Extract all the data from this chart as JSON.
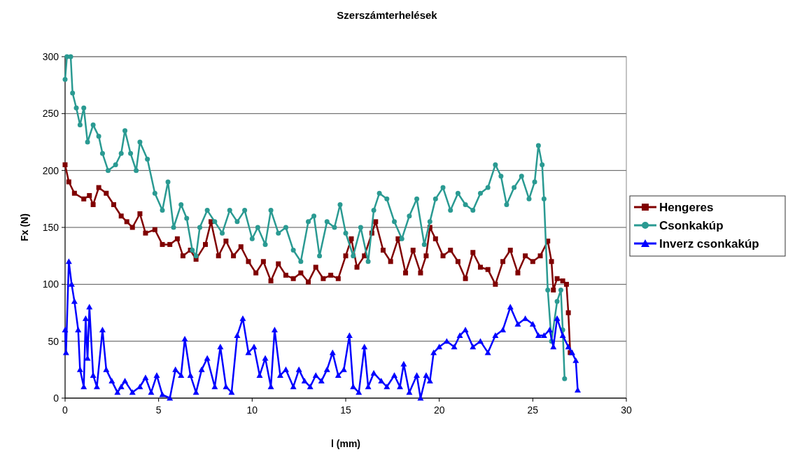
{
  "chart_data": {
    "type": "line",
    "title": "Szerszámterhelések",
    "xlabel": "l (mm)",
    "ylabel": "Fx (N)",
    "xlim": [
      0,
      30
    ],
    "xticks": [
      0,
      5,
      10,
      15,
      20,
      25,
      30
    ],
    "ylim": [
      0,
      300
    ],
    "yticks": [
      0,
      50,
      100,
      150,
      200,
      250,
      300
    ],
    "grid": "y",
    "legend": "right",
    "line_style": "solid",
    "series": [
      {
        "name": "Hengeres",
        "color": "#800000",
        "marker": "square",
        "x": [
          0,
          0.2,
          0.5,
          1,
          1.3,
          1.5,
          1.8,
          2.2,
          2.6,
          3,
          3.3,
          3.6,
          4,
          4.3,
          4.8,
          5.2,
          5.6,
          6,
          6.3,
          6.7,
          7,
          7.5,
          7.8,
          8.2,
          8.6,
          9,
          9.4,
          9.8,
          10.2,
          10.6,
          11,
          11.4,
          11.8,
          12.2,
          12.6,
          13,
          13.4,
          13.8,
          14.2,
          14.6,
          15,
          15.3,
          15.6,
          16,
          16.4,
          16.6,
          17,
          17.4,
          17.8,
          18.2,
          18.6,
          19,
          19.3,
          19.5,
          19.8,
          20.2,
          20.6,
          21,
          21.4,
          21.8,
          22.2,
          22.6,
          23,
          23.4,
          23.8,
          24.2,
          24.6,
          25,
          25.4,
          25.8,
          26,
          26.1,
          26.3,
          26.6,
          26.8,
          26.9,
          27
        ],
        "values": [
          205,
          190,
          180,
          175,
          178,
          170,
          185,
          180,
          170,
          160,
          155,
          150,
          162,
          145,
          148,
          135,
          135,
          140,
          125,
          130,
          122,
          135,
          155,
          125,
          138,
          125,
          133,
          120,
          110,
          120,
          103,
          118,
          108,
          105,
          110,
          102,
          115,
          105,
          108,
          105,
          125,
          140,
          115,
          125,
          145,
          155,
          130,
          120,
          140,
          110,
          130,
          110,
          125,
          150,
          140,
          125,
          130,
          120,
          105,
          128,
          115,
          113,
          100,
          120,
          130,
          110,
          125,
          120,
          125,
          138,
          120,
          95,
          105,
          103,
          100,
          75,
          40
        ]
      },
      {
        "name": "Csonkakúp",
        "color": "#2a9a92",
        "marker": "circle",
        "x": [
          0,
          0.1,
          0.3,
          0.4,
          0.6,
          0.8,
          1,
          1.2,
          1.5,
          1.8,
          2,
          2.3,
          2.7,
          3,
          3.2,
          3.5,
          3.8,
          4,
          4.4,
          4.8,
          5.2,
          5.5,
          5.8,
          6.2,
          6.5,
          6.8,
          7,
          7.2,
          7.6,
          8,
          8.4,
          8.8,
          9.2,
          9.6,
          10,
          10.3,
          10.7,
          11,
          11.4,
          11.8,
          12.2,
          12.6,
          13,
          13.3,
          13.6,
          14,
          14.4,
          14.7,
          15,
          15.4,
          15.8,
          16.2,
          16.5,
          16.8,
          17.2,
          17.6,
          18,
          18.4,
          18.8,
          19.2,
          19.5,
          19.8,
          20.2,
          20.6,
          21,
          21.4,
          21.8,
          22.2,
          22.6,
          23,
          23.3,
          23.6,
          24,
          24.4,
          24.8,
          25.1,
          25.3,
          25.5,
          25.6,
          25.8,
          26,
          26.3,
          26.5,
          26.6,
          26.7
        ],
        "values": [
          280,
          300,
          300,
          268,
          255,
          240,
          255,
          225,
          240,
          230,
          215,
          200,
          205,
          215,
          235,
          215,
          200,
          225,
          210,
          180,
          165,
          190,
          150,
          170,
          158,
          130,
          125,
          150,
          165,
          155,
          145,
          165,
          155,
          165,
          140,
          150,
          135,
          165,
          145,
          150,
          130,
          120,
          155,
          160,
          125,
          155,
          150,
          170,
          145,
          125,
          150,
          120,
          165,
          180,
          175,
          155,
          140,
          160,
          175,
          135,
          155,
          175,
          185,
          165,
          180,
          170,
          165,
          180,
          185,
          205,
          195,
          170,
          185,
          195,
          175,
          190,
          222,
          205,
          175,
          95,
          50,
          85,
          95,
          60,
          17
        ]
      },
      {
        "name": "Inverz csonkakúp",
        "color": "#0000ff",
        "marker": "triangle",
        "x": [
          0,
          0.05,
          0.2,
          0.35,
          0.5,
          0.7,
          0.8,
          1,
          1.1,
          1.2,
          1.3,
          1.5,
          1.7,
          2,
          2.2,
          2.5,
          2.8,
          3,
          3.2,
          3.6,
          4,
          4.3,
          4.6,
          4.9,
          5.2,
          5.6,
          5.9,
          6.2,
          6.4,
          6.7,
          7,
          7.3,
          7.6,
          8,
          8.3,
          8.6,
          8.9,
          9.2,
          9.5,
          9.8,
          10.1,
          10.4,
          10.7,
          11,
          11.2,
          11.5,
          11.8,
          12.2,
          12.5,
          12.8,
          13.1,
          13.4,
          13.7,
          14,
          14.3,
          14.6,
          14.9,
          15.2,
          15.4,
          15.7,
          16,
          16.2,
          16.5,
          16.9,
          17.2,
          17.6,
          17.9,
          18.1,
          18.4,
          18.8,
          19,
          19.3,
          19.5,
          19.7,
          20,
          20.4,
          20.8,
          21.1,
          21.4,
          21.8,
          22.2,
          22.6,
          23,
          23.4,
          23.8,
          24.2,
          24.6,
          25,
          25.3,
          25.6,
          25.9,
          26.1,
          26.3,
          26.6,
          26.9,
          27.1,
          27.3,
          27.4
        ],
        "values": [
          60,
          40,
          120,
          100,
          85,
          60,
          25,
          10,
          70,
          35,
          80,
          20,
          10,
          60,
          25,
          15,
          5,
          10,
          15,
          5,
          10,
          18,
          5,
          20,
          3,
          0,
          25,
          20,
          52,
          20,
          5,
          25,
          35,
          10,
          45,
          10,
          5,
          55,
          70,
          40,
          45,
          20,
          35,
          10,
          60,
          20,
          25,
          10,
          25,
          15,
          10,
          20,
          15,
          25,
          40,
          20,
          25,
          55,
          10,
          5,
          45,
          10,
          22,
          15,
          10,
          20,
          10,
          30,
          5,
          20,
          0,
          20,
          15,
          40,
          45,
          50,
          45,
          55,
          60,
          45,
          50,
          40,
          55,
          60,
          80,
          65,
          70,
          65,
          55,
          55,
          60,
          45,
          70,
          55,
          45,
          40,
          33,
          7
        ]
      }
    ]
  }
}
